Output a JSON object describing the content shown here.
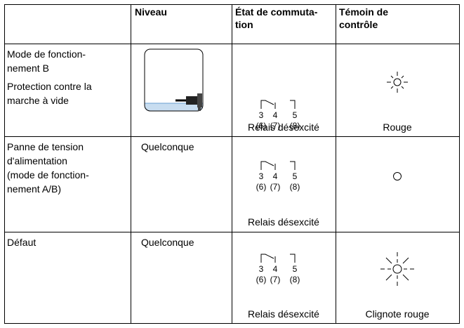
{
  "header": {
    "col1": "",
    "col2": "Niveau",
    "col3": [
      "État de commuta-",
      "tion"
    ],
    "col4": [
      "Témoin de",
      "contrôle"
    ]
  },
  "rows": [
    {
      "condition": [
        "Mode de fonction-",
        "nement B",
        "Protection contre la",
        "marche à vide"
      ],
      "level": null,
      "terminals": [
        "3",
        "4",
        "5"
      ],
      "terminals_alt": [
        "(6)",
        "(7)",
        "(8)"
      ],
      "state": "Relais désexcité",
      "indicator": "Rouge"
    },
    {
      "condition": [
        "Panne de tension",
        "d'alimentation",
        "(mode de fonction-",
        "nement A/B)"
      ],
      "level": "Quelconque",
      "terminals": [
        "3",
        "4",
        "5"
      ],
      "terminals_alt": [
        "(6)",
        "(7)",
        "(8)"
      ],
      "state": "Relais désexcité",
      "indicator": null
    },
    {
      "condition": [
        "Défaut"
      ],
      "level": "Quelconque",
      "terminals": [
        "3",
        "4",
        "5"
      ],
      "terminals_alt": [
        "(6)",
        "(7)",
        "(8)"
      ],
      "state": "Relais désexcité",
      "indicator": "Clignote rouge"
    }
  ]
}
